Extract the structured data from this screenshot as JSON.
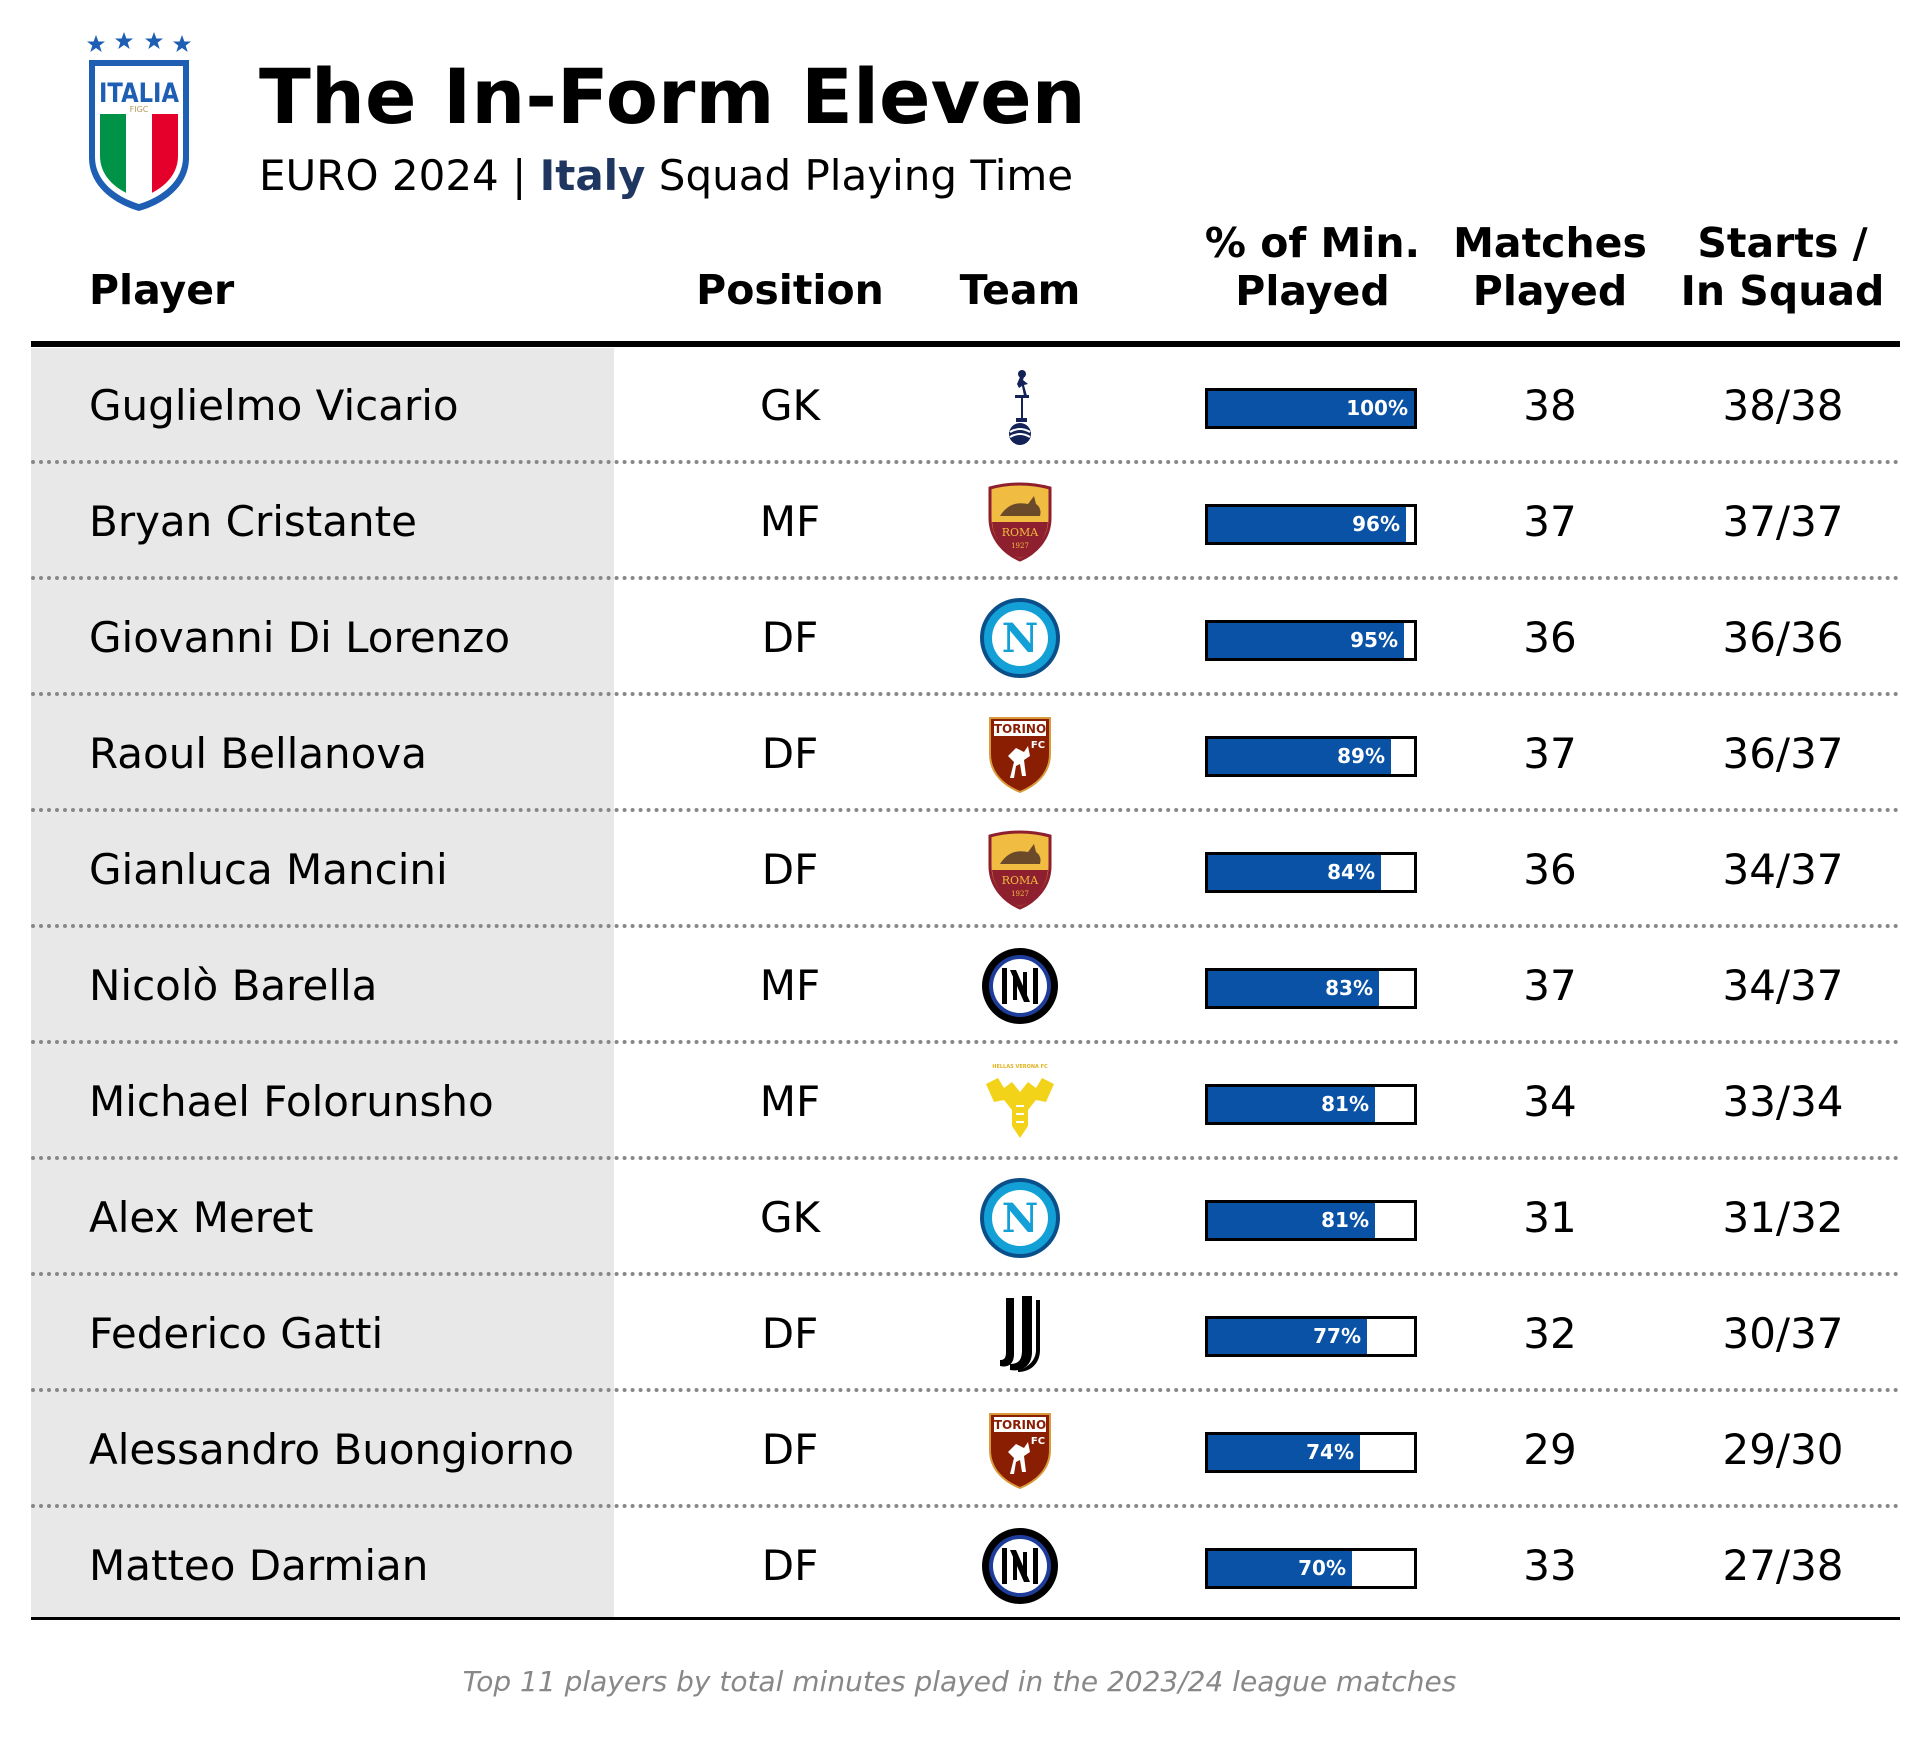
{
  "header": {
    "logo_label": "ITALIA",
    "logo_sub": "FIGC",
    "title": "The In-Form Eleven",
    "subtitle_pre": "EURO 2024 | ",
    "subtitle_highlight": "Italy",
    "subtitle_post": " Squad Playing Time"
  },
  "columns": {
    "player": "Player",
    "position": "Position",
    "team": "Team",
    "minutes_line1": "% of Min.",
    "minutes_line2": "Played",
    "matches_line1": "Matches",
    "matches_line2": "Played",
    "starts_line1": "Starts /",
    "starts_line2": "In Squad"
  },
  "crest_text": {
    "roma": "ROMA",
    "roma_year": "1927",
    "torino": "TORINO",
    "torino_fc": "FC",
    "napoli": "N",
    "verona": "HELLAS VERONA FC"
  },
  "chart_data": {
    "type": "table",
    "title": "The In-Form Eleven",
    "subtitle": "EURO 2024 | Italy Squad Playing Time",
    "rows": [
      {
        "player": "Guglielmo Vicario",
        "position": "GK",
        "team": "tottenham",
        "pct_minutes": 100,
        "pct_label": "100%",
        "matches": "38",
        "starts": "38/38"
      },
      {
        "player": "Bryan Cristante",
        "position": "MF",
        "team": "roma",
        "pct_minutes": 96,
        "pct_label": "96%",
        "matches": "37",
        "starts": "37/37"
      },
      {
        "player": "Giovanni Di Lorenzo",
        "position": "DF",
        "team": "napoli",
        "pct_minutes": 95,
        "pct_label": "95%",
        "matches": "36",
        "starts": "36/36"
      },
      {
        "player": "Raoul Bellanova",
        "position": "DF",
        "team": "torino",
        "pct_minutes": 89,
        "pct_label": "89%",
        "matches": "37",
        "starts": "36/37"
      },
      {
        "player": "Gianluca Mancini",
        "position": "DF",
        "team": "roma",
        "pct_minutes": 84,
        "pct_label": "84%",
        "matches": "36",
        "starts": "34/37"
      },
      {
        "player": "Nicolò Barella",
        "position": "MF",
        "team": "inter",
        "pct_minutes": 83,
        "pct_label": "83%",
        "matches": "37",
        "starts": "34/37"
      },
      {
        "player": "Michael Folorunsho",
        "position": "MF",
        "team": "verona",
        "pct_minutes": 81,
        "pct_label": "81%",
        "matches": "34",
        "starts": "33/34"
      },
      {
        "player": "Alex Meret",
        "position": "GK",
        "team": "napoli",
        "pct_minutes": 81,
        "pct_label": "81%",
        "matches": "31",
        "starts": "31/32"
      },
      {
        "player": "Federico Gatti",
        "position": "DF",
        "team": "juventus",
        "pct_minutes": 77,
        "pct_label": "77%",
        "matches": "32",
        "starts": "30/37"
      },
      {
        "player": "Alessandro Buongiorno",
        "position": "DF",
        "team": "torino",
        "pct_minutes": 74,
        "pct_label": "74%",
        "matches": "29",
        "starts": "29/30"
      },
      {
        "player": "Matteo Darmian",
        "position": "DF",
        "team": "inter",
        "pct_minutes": 70,
        "pct_label": "70%",
        "matches": "33",
        "starts": "27/38"
      }
    ],
    "bar_color": "#0a52a5"
  },
  "footnote": "Top 11 players by total minutes played in the 2023/24 league matches"
}
